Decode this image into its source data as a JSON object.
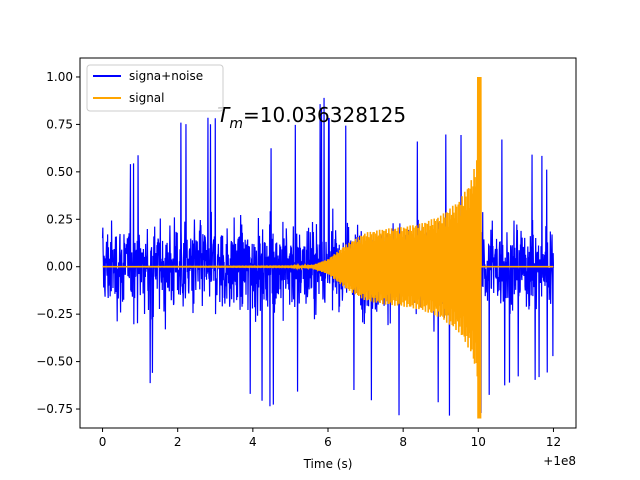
{
  "chart_data": {
    "type": "line",
    "title": "",
    "xlabel": "Time (s)",
    "ylabel": "",
    "x_offset_label": "+1e8",
    "xlim": [
      -0.6,
      12.6
    ],
    "ylim": [
      -0.85,
      1.1
    ],
    "x_ticks": [
      0,
      2,
      4,
      6,
      8,
      10,
      12
    ],
    "x_tick_labels": [
      "0",
      "2",
      "4",
      "6",
      "8",
      "10",
      "12"
    ],
    "y_ticks": [
      -0.75,
      -0.5,
      -0.25,
      0.0,
      0.25,
      0.5,
      0.75,
      1.0
    ],
    "y_tick_labels": [
      "−0.75",
      "−0.50",
      "−0.25",
      "0.00",
      "0.25",
      "0.50",
      "0.75",
      "1.00"
    ],
    "grid": false,
    "legend_position": "top-left",
    "annotation": {
      "label_main": "T",
      "label_sub": "m",
      "label_rest": "=10.036328125",
      "x": 3.05,
      "y": 0.8
    },
    "series": [
      {
        "name": "signa+noise",
        "color": "#0000ff",
        "description_envelope": [
          {
            "x": 0.0,
            "max": 0.55,
            "min": -0.55
          },
          {
            "x": 1.0,
            "max": 0.6,
            "min": -0.6
          },
          {
            "x": 1.5,
            "max": 0.86,
            "min": -0.63
          },
          {
            "x": 3.5,
            "max": 0.76,
            "min": -0.72
          },
          {
            "x": 4.8,
            "max": 0.62,
            "min": -0.85
          },
          {
            "x": 5.5,
            "max": 0.96,
            "min": -0.62
          },
          {
            "x": 7.6,
            "max": 0.6,
            "min": -0.82
          },
          {
            "x": 10.0,
            "max": 0.83,
            "min": -0.8
          },
          {
            "x": 12.0,
            "max": 0.55,
            "min": -0.55
          }
        ]
      },
      {
        "name": "signal",
        "color": "#ffa500",
        "envelope": [
          {
            "x": 0.0,
            "amp": 0.0
          },
          {
            "x": 5.0,
            "amp": 0.002
          },
          {
            "x": 5.6,
            "amp": 0.01
          },
          {
            "x": 6.0,
            "amp": 0.04
          },
          {
            "x": 6.5,
            "amp": 0.12
          },
          {
            "x": 7.0,
            "amp": 0.18
          },
          {
            "x": 7.5,
            "amp": 0.2
          },
          {
            "x": 8.0,
            "amp": 0.21
          },
          {
            "x": 8.5,
            "amp": 0.23
          },
          {
            "x": 9.0,
            "amp": 0.27
          },
          {
            "x": 9.5,
            "amp": 0.35
          },
          {
            "x": 9.8,
            "amp": 0.45
          },
          {
            "x": 10.0,
            "amp": 0.6
          },
          {
            "x": 10.04,
            "amp": 1.0
          },
          {
            "x": 10.06,
            "amp": 0.0
          },
          {
            "x": 12.0,
            "amp": 0.0
          }
        ],
        "peak": 1.0,
        "trough": -0.8
      }
    ]
  }
}
